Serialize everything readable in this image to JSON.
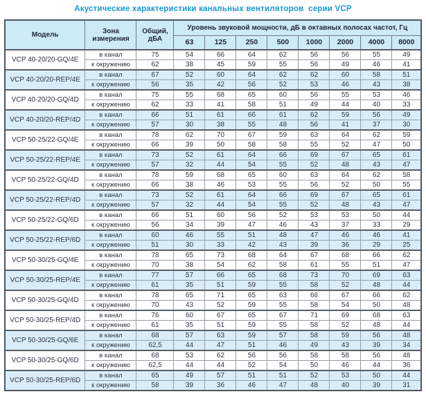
{
  "title": "Акустические характеристики канальных вентиляторов  серии VCP",
  "colors": {
    "title_blue": "#1899d6",
    "header_bg": "#cdeaf7",
    "alt_row_bg": "#d8edf9",
    "border_dark": "#4d565e",
    "border_light": "#989da3",
    "text": "#2e3340"
  },
  "table": {
    "headers": {
      "model": "Модель",
      "zone": "Зона измерения",
      "total": "Общий, дБА",
      "spl": "Уровень звуковой мощности, дБ в октавных полосах частот, Гц",
      "frequencies": [
        "63",
        "125",
        "250",
        "500",
        "1000",
        "2000",
        "4000",
        "8000"
      ]
    },
    "zone_labels": {
      "duct": "в канал",
      "ambient": "к окружению"
    },
    "rows": [
      {
        "model": "VCP 40-20/20-GQ/4E",
        "highlight": false,
        "duct": {
          "total": "75",
          "values": [
            "54",
            "66",
            "64",
            "62",
            "56",
            "56",
            "55",
            "49"
          ]
        },
        "ambient": {
          "total": "62",
          "values": [
            "38",
            "45",
            "59",
            "55",
            "56",
            "49",
            "46",
            "41"
          ]
        }
      },
      {
        "model": "VCP 40-20/20-REP/4E",
        "highlight": true,
        "duct": {
          "total": "67",
          "values": [
            "52",
            "60",
            "64",
            "62",
            "62",
            "60",
            "58",
            "51"
          ]
        },
        "ambient": {
          "total": "56",
          "values": [
            "35",
            "42",
            "56",
            "52",
            "53",
            "46",
            "43",
            "38"
          ]
        }
      },
      {
        "model": "VCP 40-20/20-GQ/4D",
        "highlight": false,
        "duct": {
          "total": "75",
          "values": [
            "55",
            "68",
            "65",
            "60",
            "56",
            "55",
            "53",
            "46"
          ]
        },
        "ambient": {
          "total": "62",
          "values": [
            "33",
            "41",
            "58",
            "51",
            "49",
            "44",
            "40",
            "33"
          ]
        }
      },
      {
        "model": "VCP 40-20/20-REP/4D",
        "highlight": true,
        "duct": {
          "total": "66",
          "values": [
            "51",
            "61",
            "66",
            "61",
            "62",
            "59",
            "56",
            "49"
          ]
        },
        "ambient": {
          "total": "57",
          "values": [
            "30",
            "38",
            "55",
            "48",
            "56",
            "41",
            "37",
            "30"
          ]
        }
      },
      {
        "model": "VCP 50-25/22-GQ/4E",
        "highlight": false,
        "duct": {
          "total": "78",
          "values": [
            "62",
            "70",
            "67",
            "59",
            "63",
            "64",
            "62",
            "59"
          ]
        },
        "ambient": {
          "total": "66",
          "values": [
            "39",
            "50",
            "58",
            "58",
            "55",
            "52",
            "47",
            "50"
          ]
        }
      },
      {
        "model": "VCP 50-25/22-REP/4E",
        "highlight": true,
        "duct": {
          "total": "73",
          "values": [
            "52",
            "61",
            "64",
            "66",
            "69",
            "67",
            "65",
            "61"
          ]
        },
        "ambient": {
          "total": "57",
          "values": [
            "32",
            "44",
            "54",
            "55",
            "52",
            "48",
            "43",
            "47"
          ]
        }
      },
      {
        "model": "VCP 50-25/22-GQ/4D",
        "highlight": false,
        "duct": {
          "total": "78",
          "values": [
            "59",
            "68",
            "65",
            "60",
            "63",
            "64",
            "62",
            "58"
          ]
        },
        "ambient": {
          "total": "66",
          "values": [
            "38",
            "46",
            "53",
            "55",
            "56",
            "52",
            "50",
            "55"
          ]
        }
      },
      {
        "model": "VCP 50-25/22-REP/4D",
        "highlight": true,
        "duct": {
          "total": "73",
          "values": [
            "52",
            "61",
            "64",
            "66",
            "69",
            "67",
            "65",
            "61"
          ]
        },
        "ambient": {
          "total": "57",
          "values": [
            "32",
            "44",
            "54",
            "55",
            "52",
            "48",
            "43",
            "47"
          ]
        }
      },
      {
        "model": "VCP 50-25/22-GQ/6D",
        "highlight": false,
        "duct": {
          "total": "66",
          "values": [
            "51",
            "60",
            "56",
            "52",
            "53",
            "53",
            "50",
            "44"
          ]
        },
        "ambient": {
          "total": "56",
          "values": [
            "34",
            "39",
            "47",
            "46",
            "43",
            "37",
            "33",
            "29"
          ]
        }
      },
      {
        "model": "VCP 50-25/22-REP/6D",
        "highlight": true,
        "duct": {
          "total": "60",
          "values": [
            "46",
            "55",
            "51",
            "48",
            "47",
            "46",
            "46",
            "41"
          ]
        },
        "ambient": {
          "total": "51",
          "values": [
            "30",
            "33",
            "42",
            "43",
            "39",
            "36",
            "29",
            "25"
          ]
        }
      },
      {
        "model": "VCP 50-30/25-GQ/4E",
        "highlight": false,
        "duct": {
          "total": "78",
          "values": [
            "65",
            "73",
            "68",
            "64",
            "67",
            "68",
            "66",
            "62"
          ]
        },
        "ambient": {
          "total": "70",
          "values": [
            "38",
            "54",
            "62",
            "58",
            "61",
            "55",
            "51",
            "47"
          ]
        }
      },
      {
        "model": "VCP 50-30/25-REP/4E",
        "highlight": true,
        "duct": {
          "total": "77",
          "values": [
            "57",
            "66",
            "65",
            "68",
            "73",
            "70",
            "69",
            "63"
          ]
        },
        "ambient": {
          "total": "61",
          "values": [
            "35",
            "51",
            "59",
            "55",
            "58",
            "52",
            "48",
            "44"
          ]
        }
      },
      {
        "model": "VCP 50-30/25-GQ/4D",
        "highlight": false,
        "duct": {
          "total": "78",
          "values": [
            "65",
            "71",
            "65",
            "63",
            "66",
            "67",
            "66",
            "62"
          ]
        },
        "ambient": {
          "total": "70",
          "values": [
            "43",
            "52",
            "59",
            "55",
            "58",
            "54",
            "50",
            "48"
          ]
        }
      },
      {
        "model": "VCP 50-30/25-REP/4D",
        "highlight": false,
        "duct": {
          "total": "76",
          "values": [
            "60",
            "67",
            "65",
            "67",
            "71",
            "69",
            "68",
            "63"
          ]
        },
        "ambient": {
          "total": "61",
          "values": [
            "35",
            "51",
            "59",
            "55",
            "58",
            "52",
            "48",
            "44"
          ]
        }
      },
      {
        "model": "VCP 50-30/25-GQ/6E",
        "highlight": true,
        "duct": {
          "total": "68",
          "values": [
            "57",
            "63",
            "59",
            "57",
            "58",
            "59",
            "56",
            "48"
          ]
        },
        "ambient": {
          "total": "62,5",
          "values": [
            "44",
            "47",
            "51",
            "46",
            "49",
            "43",
            "39",
            "34"
          ]
        }
      },
      {
        "model": "VCP 50-30/25-GQ/6D",
        "highlight": false,
        "duct": {
          "total": "68",
          "values": [
            "53",
            "62",
            "56",
            "56",
            "58",
            "58",
            "56",
            "48"
          ]
        },
        "ambient": {
          "total": "62,5",
          "values": [
            "44",
            "44",
            "52",
            "54",
            "50",
            "46",
            "44",
            "36"
          ]
        }
      },
      {
        "model": "VCP 50-30/25-REP/6D",
        "highlight": true,
        "duct": {
          "total": "65",
          "values": [
            "49",
            "57",
            "51",
            "51",
            "52",
            "53",
            "50",
            "44"
          ]
        },
        "ambient": {
          "total": "58",
          "values": [
            "39",
            "36",
            "46",
            "47",
            "48",
            "40",
            "39",
            "31"
          ]
        }
      }
    ]
  }
}
